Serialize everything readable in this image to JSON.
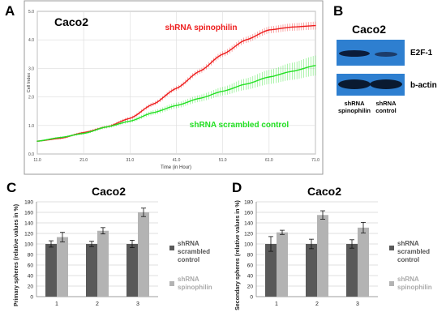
{
  "panels": {
    "a": "A",
    "b": "B",
    "c": "C",
    "d": "D"
  },
  "blot": {
    "title": "Caco2",
    "band1_label": "E2F-1",
    "band2_label": "b-actin",
    "lane1": [
      "shRNA",
      "spinophilin"
    ],
    "lane2": [
      "shRNA",
      "control"
    ]
  },
  "colors": {
    "red_series": "#ee1c1c",
    "green_series": "#22e022",
    "dark_bar": "#595959",
    "light_bar": "#b3b3b3",
    "blot_bg": "#2e7fd0"
  },
  "chart_data": [
    {
      "type": "line",
      "title": "Caco2",
      "xlabel": "Time (in Hour)",
      "ylabel": "Cell Index",
      "xlim": [
        11,
        71
      ],
      "ylim": [
        0,
        5
      ],
      "xticks": [
        "11.0",
        "21.0",
        "31.0",
        "41.0",
        "51.0",
        "61.0",
        "71.0"
      ],
      "yticks": [
        "0.0",
        "1.0",
        "2.0",
        "3.0",
        "4.0",
        "5.0"
      ],
      "grid": true,
      "series": [
        {
          "name": "shRNA spinophilin",
          "color": "#ee1c1c",
          "x": [
            11,
            16,
            21,
            26,
            31,
            36,
            41,
            46,
            51,
            56,
            61,
            66,
            71
          ],
          "y": [
            0.45,
            0.55,
            0.75,
            0.95,
            1.25,
            1.75,
            2.3,
            2.9,
            3.5,
            4.0,
            4.35,
            4.45,
            4.5
          ]
        },
        {
          "name": "shRNA scrambled control",
          "color": "#22e022",
          "x": [
            11,
            16,
            21,
            26,
            31,
            36,
            41,
            46,
            51,
            56,
            61,
            66,
            71
          ],
          "y": [
            0.45,
            0.58,
            0.72,
            0.95,
            1.15,
            1.45,
            1.7,
            1.95,
            2.2,
            2.45,
            2.7,
            2.9,
            3.1
          ],
          "error": [
            0.02,
            0.03,
            0.04,
            0.05,
            0.06,
            0.08,
            0.1,
            0.12,
            0.15,
            0.2,
            0.25,
            0.3,
            0.35
          ]
        }
      ]
    },
    {
      "type": "bar",
      "title": "Caco2",
      "xlabel": "",
      "ylabel": "Primary spheres (relative values in %)",
      "categories": [
        "1",
        "2",
        "3"
      ],
      "ylim": [
        0,
        180
      ],
      "yticks": [
        "0",
        "20",
        "40",
        "60",
        "80",
        "100",
        "120",
        "140",
        "160",
        "180"
      ],
      "grid": true,
      "legend": "right",
      "series": [
        {
          "name": "shRNA scrambled control",
          "label_lines": [
            "shRNA",
            "scrambled",
            "control"
          ],
          "values": [
            100,
            100,
            100
          ],
          "errors": [
            6,
            5,
            7
          ]
        },
        {
          "name": "shRNA spinophilin",
          "label_lines": [
            "shRNA",
            "spinophilin"
          ],
          "values": [
            113,
            125,
            160
          ],
          "errors": [
            9,
            6,
            8
          ]
        }
      ]
    },
    {
      "type": "bar",
      "title": "Caco2",
      "xlabel": "",
      "ylabel": "Secondary spheres (relative values in %)",
      "categories": [
        "1",
        "2",
        "3"
      ],
      "ylim": [
        0,
        180
      ],
      "yticks": [
        "0",
        "20",
        "40",
        "60",
        "80",
        "100",
        "120",
        "140",
        "160",
        "180"
      ],
      "grid": true,
      "legend": "right",
      "series": [
        {
          "name": "shRNA scrambled control",
          "label_lines": [
            "shRNA",
            "scrambled",
            "control"
          ],
          "values": [
            100,
            100,
            100
          ],
          "errors": [
            14,
            9,
            8
          ]
        },
        {
          "name": "shRNA spinophilin",
          "label_lines": [
            "shRNA",
            "spinophilin"
          ],
          "values": [
            122,
            155,
            131
          ],
          "errors": [
            4,
            8,
            10
          ]
        }
      ]
    }
  ]
}
